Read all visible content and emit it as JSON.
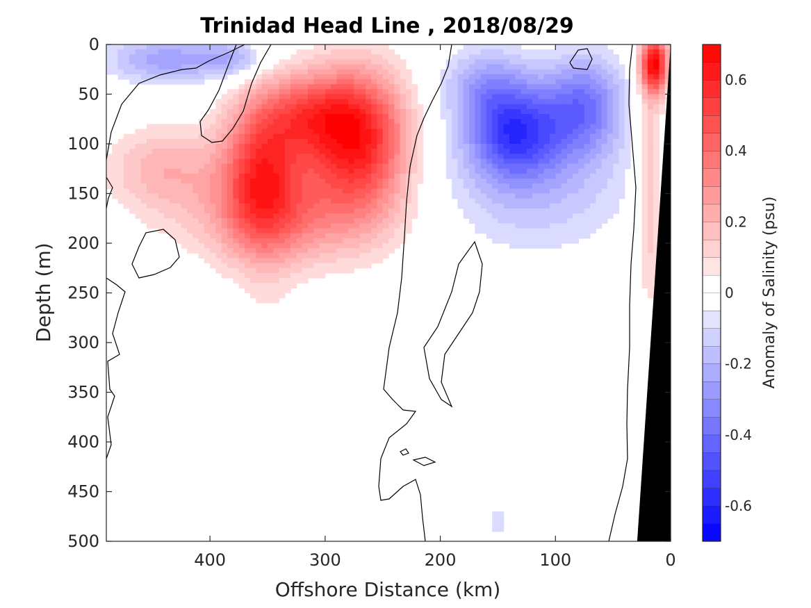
{
  "chart_data": {
    "type": "heatmap",
    "title": "Trinidad Head Line , 2018/08/29",
    "xlabel": "Offshore Distance (km)",
    "ylabel": "Depth (m)",
    "xlim": [
      490,
      0
    ],
    "ylim": [
      0,
      500
    ],
    "x_reversed": true,
    "y_reversed": true,
    "xticks": [
      400,
      300,
      200,
      100,
      0
    ],
    "yticks": [
      0,
      50,
      100,
      150,
      200,
      250,
      300,
      350,
      400,
      450,
      500
    ],
    "colorbar": {
      "label": "Anomaly of Salinity (psu)",
      "range": [
        -0.7,
        0.7
      ],
      "ticks": [
        -0.6,
        -0.4,
        -0.2,
        0,
        0.2,
        0.4,
        0.6
      ],
      "levels": 28,
      "negative_color": "#0000ff",
      "zero_color": "#ffffff",
      "positive_color": "#ff0000"
    },
    "zero_contour": true,
    "bathymetry_color": "#000000",
    "bathymetry": [
      [
        0,
        0
      ],
      [
        0,
        500
      ],
      [
        29,
        500
      ]
    ],
    "anomaly_features": [
      {
        "x": 272,
        "y": 95,
        "value": 0.62,
        "rx": 45,
        "ry": 70
      },
      {
        "x": 355,
        "y": 125,
        "value": 0.5,
        "rx": 35,
        "ry": 75
      },
      {
        "x": 315,
        "y": 70,
        "value": 0.3,
        "rx": 40,
        "ry": 40
      },
      {
        "x": 440,
        "y": 125,
        "value": 0.2,
        "rx": 50,
        "ry": 45
      },
      {
        "x": 330,
        "y": 175,
        "value": 0.25,
        "rx": 90,
        "ry": 50
      },
      {
        "x": 350,
        "y": 350,
        "value": 0.06,
        "rx": 25,
        "ry": 170
      },
      {
        "x": 460,
        "y": 440,
        "value": 0.05,
        "rx": 22,
        "ry": 70
      },
      {
        "x": 14,
        "y": 20,
        "value": 0.65,
        "rx": 12,
        "ry": 30
      },
      {
        "x": 18,
        "y": 140,
        "value": 0.2,
        "rx": 12,
        "ry": 120
      },
      {
        "x": 135,
        "y": 88,
        "value": -0.45,
        "rx": 40,
        "ry": 45
      },
      {
        "x": 75,
        "y": 60,
        "value": -0.35,
        "rx": 35,
        "ry": 50
      },
      {
        "x": 120,
        "y": 140,
        "value": -0.18,
        "rx": 85,
        "ry": 70
      },
      {
        "x": 440,
        "y": 15,
        "value": -0.25,
        "rx": 50,
        "ry": 25
      },
      {
        "x": 380,
        "y": 15,
        "value": -0.2,
        "rx": 30,
        "ry": 20
      },
      {
        "x": 160,
        "y": 40,
        "value": -0.22,
        "rx": 40,
        "ry": 40
      },
      {
        "x": 150,
        "y": 480,
        "value": -0.08,
        "rx": 22,
        "ry": 40
      }
    ]
  }
}
